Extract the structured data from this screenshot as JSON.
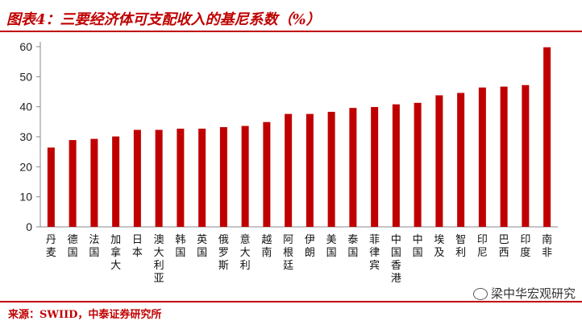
{
  "title": "图表4：三要经济体可支配收入的基尼系数（%）",
  "source": "来源：SWIID，中泰证券研究所",
  "watermark": "梁中华宏观研究",
  "colors": {
    "bar": "#c00000",
    "title": "#c00000"
  },
  "chart_data": {
    "type": "bar",
    "categories": [
      "丹麦",
      "德国",
      "法国",
      "加拿大",
      "日本",
      "澳大利亚",
      "韩国",
      "英国",
      "俄罗斯",
      "意大利",
      "越南",
      "阿根廷",
      "伊朗",
      "美国",
      "泰国",
      "菲律宾",
      "中国香港",
      "中国",
      "埃及",
      "智利",
      "印尼",
      "巴西",
      "印度",
      "南非"
    ],
    "values": [
      26.4,
      28.9,
      29.3,
      30.1,
      32.3,
      32.3,
      32.7,
      32.7,
      33.2,
      33.6,
      34.9,
      37.6,
      37.6,
      38.3,
      39.6,
      39.9,
      40.8,
      41.3,
      43.8,
      44.6,
      46.4,
      46.7,
      47.2,
      59.8
    ],
    "ylim": [
      0,
      60
    ],
    "yticks": [
      0,
      10,
      20,
      30,
      40,
      50,
      60
    ],
    "grid": false,
    "xlabel": "",
    "ylabel": ""
  }
}
